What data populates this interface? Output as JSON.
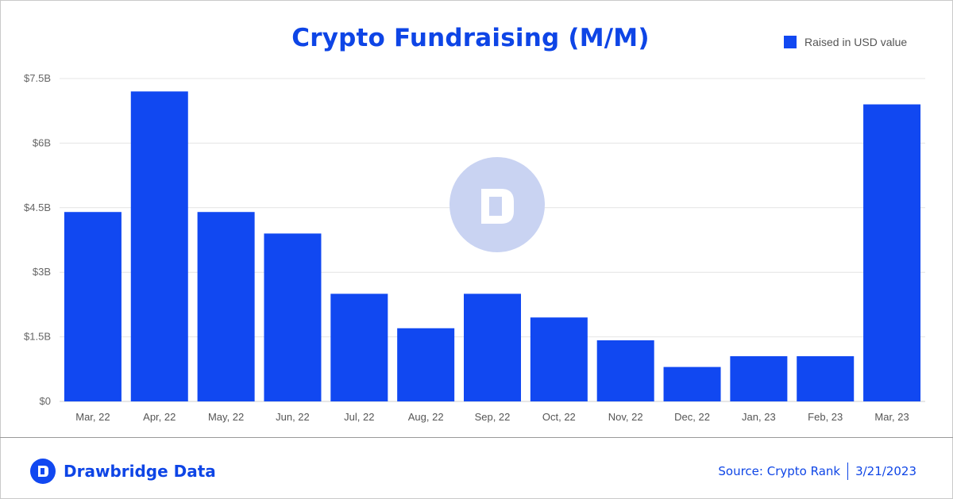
{
  "header": {
    "title": "Crypto Fundraising (M/M)",
    "legend_label": "Raised in USD value"
  },
  "footer": {
    "brand_name": "Drawbridge Data",
    "source_label": "Source: Crypto Rank",
    "date": "3/21/2023"
  },
  "watermark": {
    "icon": "drawbridge-logo-icon"
  },
  "colors": {
    "bar": "#1148f1",
    "title": "#0e45e6",
    "grid": "#e4e4e4",
    "watermark": "#c9d3f2"
  },
  "chart_data": {
    "type": "bar",
    "title": "Crypto Fundraising (M/M)",
    "xlabel": "",
    "ylabel": "",
    "categories": [
      "Mar, 22",
      "Apr, 22",
      "May, 22",
      "Jun, 22",
      "Jul, 22",
      "Aug, 22",
      "Sep, 22",
      "Oct, 22",
      "Nov, 22",
      "Dec, 22",
      "Jan, 23",
      "Feb, 23",
      "Mar, 23"
    ],
    "series": [
      {
        "name": "Raised in USD value",
        "values": [
          4.4,
          7.2,
          4.4,
          3.9,
          2.5,
          1.7,
          2.5,
          1.95,
          1.42,
          0.8,
          1.05,
          1.05,
          6.9
        ]
      }
    ],
    "ylim": [
      0,
      7.5
    ],
    "yticks": [
      0,
      1.5,
      3,
      4.5,
      6,
      7.5
    ],
    "ytick_labels": [
      "$0",
      "$1.5B",
      "$3B",
      "$4.5B",
      "$6B",
      "$7.5B"
    ],
    "units": "USD billions",
    "grid": true,
    "legend_position": "top-right"
  }
}
